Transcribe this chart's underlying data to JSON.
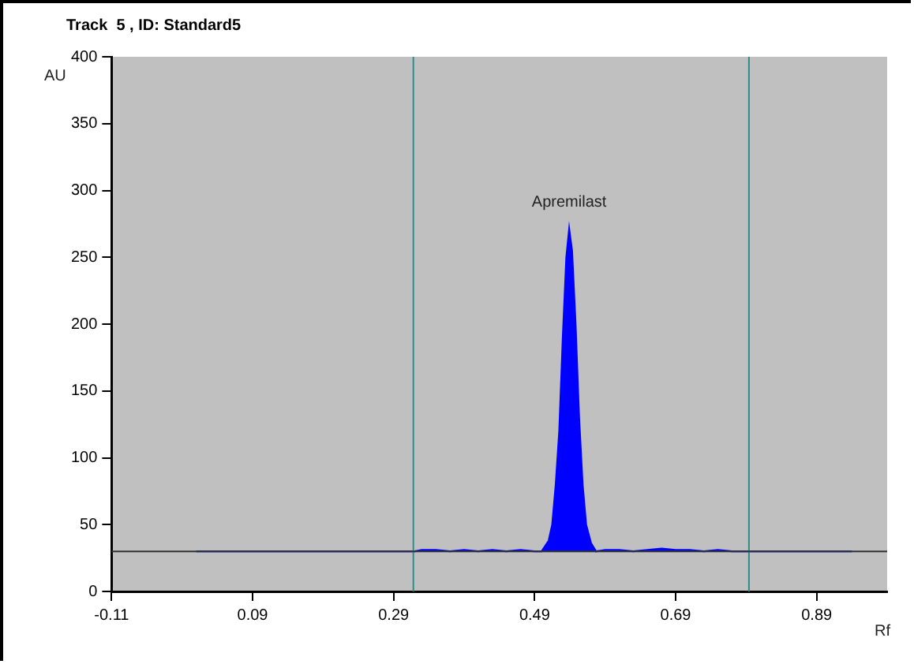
{
  "chart_data": {
    "type": "area",
    "title": "Track  5 , ID: Standard5",
    "xlabel": "Rf",
    "ylabel": "AU",
    "series": [
      {
        "color": "#0000ff",
        "x": [
          0.01,
          0.1,
          0.2,
          0.31,
          0.32,
          0.33,
          0.35,
          0.37,
          0.39,
          0.41,
          0.43,
          0.45,
          0.47,
          0.49,
          0.5,
          0.51,
          0.515,
          0.52,
          0.525,
          0.53,
          0.535,
          0.539,
          0.543,
          0.548,
          0.553,
          0.558,
          0.563,
          0.57,
          0.577,
          0.59,
          0.61,
          0.63,
          0.65,
          0.67,
          0.69,
          0.71,
          0.73,
          0.75,
          0.77,
          0.79,
          0.85,
          0.94
        ],
        "values": [
          30,
          30,
          30,
          30,
          30,
          31,
          31,
          30,
          31,
          30,
          31,
          30,
          31,
          30,
          30,
          38,
          50,
          80,
          120,
          190,
          250,
          271,
          255,
          200,
          130,
          80,
          50,
          36,
          30,
          31,
          31,
          30,
          31,
          32,
          31,
          31,
          30,
          31,
          30,
          30,
          30,
          30
        ]
      }
    ],
    "xlim": [
      -0.11,
      0.99
    ],
    "xticks": [
      -0.11,
      0.09,
      0.29,
      0.49,
      0.69,
      0.89
    ],
    "ylim": [
      0,
      400
    ],
    "yticks": [
      0,
      50,
      100,
      150,
      200,
      250,
      300,
      350,
      400
    ],
    "grid": false,
    "legend": false,
    "ref_lines": [
      {
        "axis": "x",
        "value": 0.318,
        "color": "#2e8b8b"
      },
      {
        "axis": "x",
        "value": 0.794,
        "color": "#2e8b8b"
      },
      {
        "axis": "y",
        "value": 30,
        "color": "#333333"
      }
    ],
    "annotations": [
      {
        "text": "Apremilast",
        "x": 0.539,
        "y": 271
      }
    ]
  }
}
